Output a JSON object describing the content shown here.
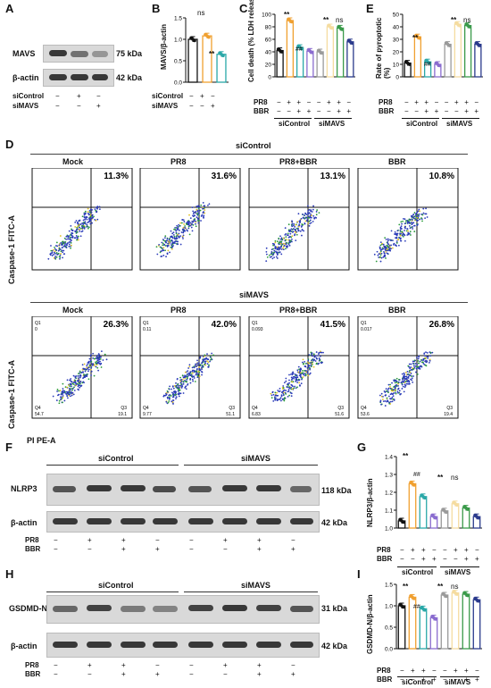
{
  "panel_letters": [
    "A",
    "B",
    "C",
    "D",
    "E",
    "F",
    "G",
    "H",
    "I"
  ],
  "panel_a": {
    "rows": [
      "MAVS",
      "β-actin"
    ],
    "sizes": [
      "75 kDa",
      "42 kDa"
    ],
    "conditions": [
      {
        "name": "siControl",
        "marks": [
          "−",
          "+",
          "−"
        ]
      },
      {
        "name": "siMAVS",
        "marks": [
          "−",
          "−",
          "+"
        ]
      }
    ]
  },
  "panel_b": {
    "ylabel": "MAVS/β-actin",
    "sig": [
      "ns",
      "**"
    ],
    "conditions": [
      {
        "name": "siControl",
        "marks": [
          "−",
          "+",
          "−"
        ]
      },
      {
        "name": "siMAVS",
        "marks": [
          "−",
          "−",
          "+"
        ]
      }
    ]
  },
  "panel_c": {
    "ylabel": "Cell death (% LDH release)",
    "sig": [
      "**",
      "##",
      "**",
      "ns"
    ]
  },
  "panel_e": {
    "ylabel": "Rate of pyroptotic (%)",
    "sig": [
      "**",
      "##",
      "**",
      "ns"
    ]
  },
  "treatments": {
    "pr8_label": "PR8",
    "bbr_label": "BBR",
    "pr8": [
      "−",
      "+",
      "+",
      "−",
      "−",
      "+",
      "+",
      "−"
    ],
    "bbr": [
      "−",
      "−",
      "+",
      "+",
      "−",
      "−",
      "+",
      "+"
    ],
    "groups": [
      "siControl",
      "siMAVS"
    ]
  },
  "panel_d": {
    "top_title": "siControl",
    "bottom_title": "siMAVS",
    "ylabel": "Caspase-1 FITC-A",
    "xlabel": "PI PE-A",
    "columns": [
      "Mock",
      "PR8",
      "PR8+BBR",
      "BBR"
    ],
    "top_pct": [
      "11.3%",
      "31.6%",
      "13.1%",
      "10.8%"
    ],
    "bottom_pct": [
      "26.3%",
      "42.0%",
      "41.5%",
      "26.8%"
    ],
    "quad_q1": [
      "Q1",
      "Q1",
      "Q1",
      "Q1"
    ],
    "quad_q1_vals": [
      "0",
      "0.11",
      "0.093",
      "0.017"
    ],
    "quad_q4": [
      "Q4",
      "Q4",
      "Q4",
      "Q4"
    ],
    "quad_q4_vals": [
      "54.7",
      "9.77",
      "6.83",
      "53.6"
    ],
    "quad_q3": [
      "Q3",
      "Q3",
      "Q3",
      "Q3"
    ],
    "quad_q3_vals": [
      "19.1",
      "51.1",
      "51.6",
      "19.4"
    ]
  },
  "panel_f": {
    "groups": [
      "siControl",
      "siMAVS"
    ],
    "rows": [
      "NLRP3",
      "β-actin"
    ],
    "sizes": [
      "118 kDa",
      "42 kDa"
    ]
  },
  "panel_g": {
    "ylabel": "NLRP3/β-actin",
    "sig": [
      "**",
      "##",
      "**",
      "ns"
    ]
  },
  "panel_h": {
    "groups": [
      "siControl",
      "siMAVS"
    ],
    "rows": [
      "GSDMD-N",
      "β-actin"
    ],
    "sizes": [
      "31 kDa",
      "42 kDa"
    ]
  },
  "panel_i": {
    "ylabel": "GSDMD-N/β-actin",
    "sig": [
      "**",
      "##",
      "**",
      "ns"
    ]
  },
  "colors": {
    "black": "#111111",
    "orange": "#f0a030",
    "teal": "#2aa8a8",
    "purple": "#8a6ccf",
    "navy": "#2a3a8c",
    "green": "#3a9a4a",
    "gray": "#9a9a9a"
  },
  "chart_data": [
    {
      "type": "bar",
      "name": "B",
      "ylim": [
        0,
        1.5
      ],
      "yticks": [
        "0.0",
        "0.5",
        "1.0",
        "1.5"
      ],
      "values": [
        1.0,
        1.08,
        0.65
      ],
      "colors": [
        "#111111",
        "#f0a030",
        "#2aa8a8"
      ]
    },
    {
      "type": "bar",
      "name": "C",
      "ylim": [
        0,
        100
      ],
      "yticks": [
        "0",
        "20",
        "40",
        "60",
        "80",
        "100"
      ],
      "values": [
        42,
        90,
        47,
        41,
        40,
        80,
        78,
        56
      ],
      "colors": [
        "#111111",
        "#f0a030",
        "#2aa8a8",
        "#8a6ccf",
        "#9a9a9a",
        "#f5dca0",
        "#3a9a4a",
        "#2a3a8c"
      ]
    },
    {
      "type": "bar",
      "name": "E",
      "ylim": [
        0,
        50
      ],
      "yticks": [
        "0",
        "10",
        "20",
        "30",
        "40",
        "50"
      ],
      "values": [
        11,
        32,
        12,
        10,
        26,
        42,
        41,
        26
      ],
      "colors": [
        "#111111",
        "#f0a030",
        "#2aa8a8",
        "#8a6ccf",
        "#9a9a9a",
        "#f5dca0",
        "#3a9a4a",
        "#2a3a8c"
      ]
    },
    {
      "type": "bar",
      "name": "G",
      "ylim": [
        0.95,
        1.45
      ],
      "yticks": [
        "1.0",
        "1.1",
        "1.2",
        "1.3",
        "1.4"
      ],
      "values": [
        1.0,
        1.26,
        1.17,
        1.03,
        1.07,
        1.12,
        1.09,
        1.03
      ],
      "colors": [
        "#111111",
        "#f0a030",
        "#2aa8a8",
        "#8a6ccf",
        "#9a9a9a",
        "#f5dca0",
        "#3a9a4a",
        "#2a3a8c"
      ]
    },
    {
      "type": "bar",
      "name": "I",
      "ylim": [
        0,
        1.5
      ],
      "yticks": [
        "0.0",
        "0.5",
        "1.0",
        "1.5"
      ],
      "values": [
        1.0,
        1.2,
        0.93,
        0.72,
        1.25,
        1.3,
        1.27,
        1.14
      ],
      "colors": [
        "#111111",
        "#f0a030",
        "#2aa8a8",
        "#8a6ccf",
        "#9a9a9a",
        "#f5dca0",
        "#3a9a4a",
        "#2a3a8c"
      ]
    }
  ]
}
